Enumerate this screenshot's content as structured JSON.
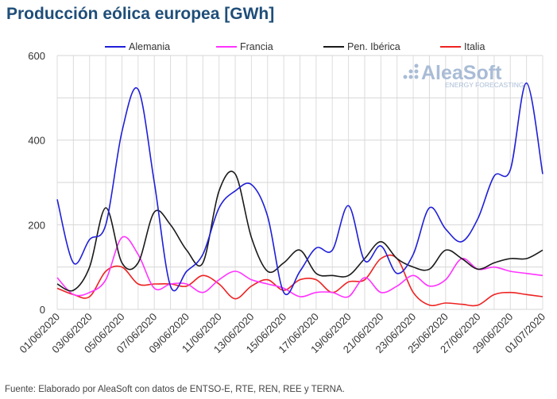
{
  "chart_data": {
    "type": "line",
    "title": "Producción eólica europea [GWh]",
    "source": "Fuente: Elaborado por AleaSoft con datos de ENTSO-E, RTE, REN, REE y TERNA.",
    "watermark": "AleaSoft ENERGY FORECASTING",
    "ylim": [
      0,
      600
    ],
    "yticks": [
      0,
      200,
      400,
      600
    ],
    "grid": true,
    "legend": "top",
    "x": [
      "01/06/2020",
      "02/06/2020",
      "03/06/2020",
      "04/06/2020",
      "05/06/2020",
      "06/06/2020",
      "07/06/2020",
      "08/06/2020",
      "09/06/2020",
      "10/06/2020",
      "11/06/2020",
      "12/06/2020",
      "13/06/2020",
      "14/06/2020",
      "15/06/2020",
      "16/06/2020",
      "17/06/2020",
      "18/06/2020",
      "19/06/2020",
      "20/06/2020",
      "21/06/2020",
      "22/06/2020",
      "23/06/2020",
      "24/06/2020",
      "25/06/2020",
      "26/06/2020",
      "27/06/2020",
      "28/06/2020",
      "29/06/2020",
      "30/06/2020",
      "01/07/2020"
    ],
    "xticklabels": [
      "01/06/2020",
      "03/06/2020",
      "05/06/2020",
      "07/06/2020",
      "09/06/2020",
      "11/06/2020",
      "13/06/2020",
      "15/06/2020",
      "17/06/2020",
      "19/06/2020",
      "21/06/2020",
      "23/06/2020",
      "25/06/2020",
      "27/06/2020",
      "29/06/2020",
      "01/07/2020"
    ],
    "series": [
      {
        "name": "Alemania",
        "color": "#1f1fd8",
        "values": [
          260,
          110,
          165,
          200,
          420,
          520,
          300,
          55,
          90,
          130,
          240,
          280,
          295,
          220,
          40,
          90,
          145,
          140,
          245,
          115,
          150,
          85,
          130,
          240,
          190,
          160,
          215,
          315,
          330,
          535,
          320
        ]
      },
      {
        "name": "Francia",
        "color": "#ff33ff",
        "values": [
          75,
          35,
          40,
          70,
          170,
          130,
          50,
          60,
          60,
          40,
          70,
          90,
          70,
          60,
          50,
          30,
          40,
          40,
          30,
          75,
          40,
          55,
          80,
          55,
          70,
          120,
          95,
          100,
          90,
          85,
          80
        ]
      },
      {
        "name": "Pen. Ibérica",
        "color": "#1a1a1a",
        "values": [
          60,
          45,
          100,
          240,
          110,
          110,
          230,
          200,
          140,
          110,
          280,
          320,
          170,
          90,
          110,
          140,
          85,
          80,
          80,
          120,
          160,
          120,
          100,
          95,
          140,
          120,
          95,
          110,
          120,
          120,
          140
        ]
      },
      {
        "name": "Italia",
        "color": "#ee2222",
        "values": [
          50,
          35,
          30,
          90,
          100,
          60,
          60,
          60,
          55,
          80,
          60,
          25,
          55,
          70,
          45,
          70,
          70,
          40,
          65,
          70,
          120,
          120,
          40,
          10,
          15,
          12,
          10,
          35,
          40,
          35,
          30
        ]
      }
    ]
  }
}
